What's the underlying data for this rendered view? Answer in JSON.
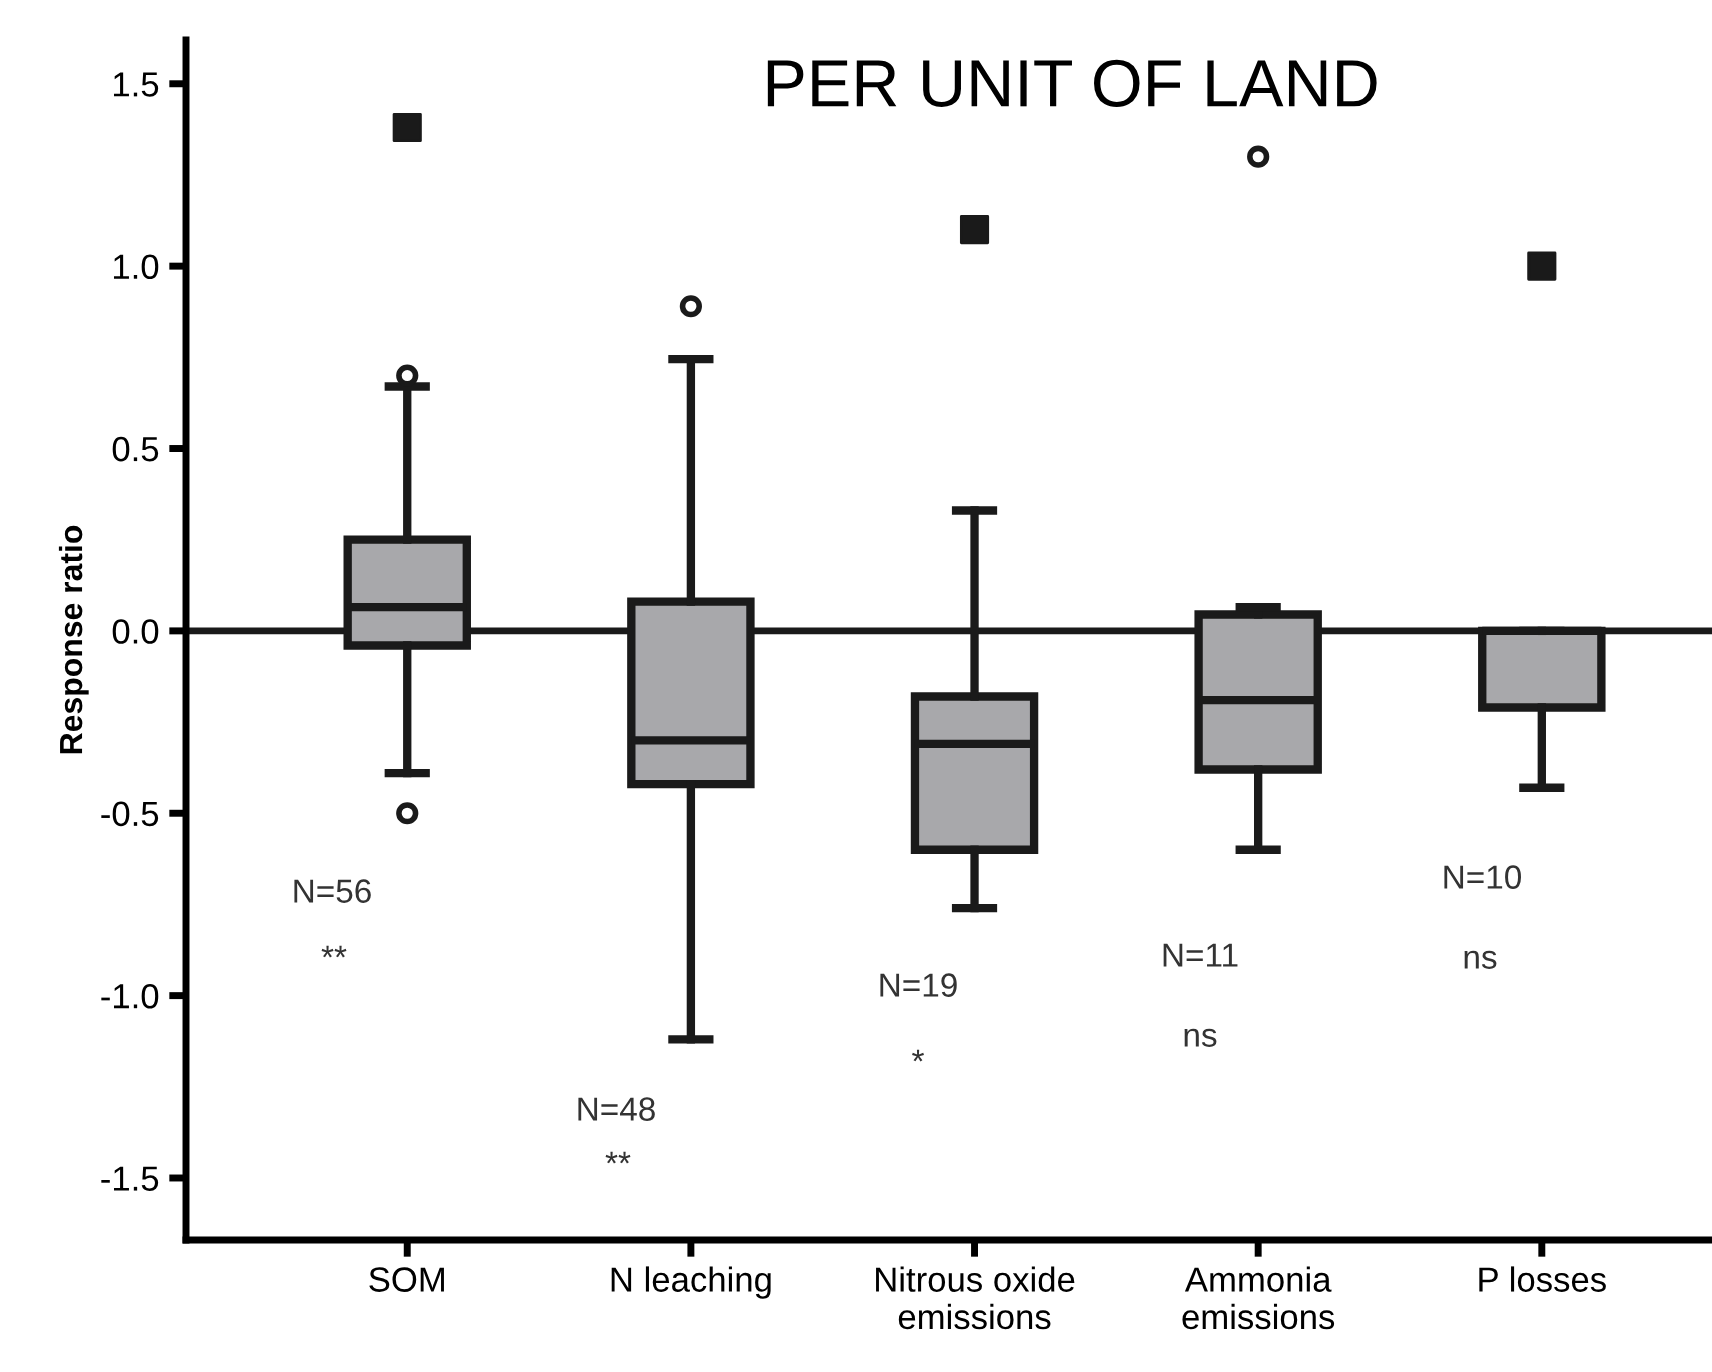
{
  "chart_data": {
    "type": "box",
    "title": "PER UNIT OF LAND",
    "ylabel": "Response ratio",
    "categories": [
      "SOM",
      "N leaching",
      "Nitrous oxide\nemissions",
      "Ammonia\nemissions",
      "P losses"
    ],
    "series": [
      {
        "color": "#a8a8ab",
        "boxes": [
          {
            "low": -0.39,
            "q1": -0.04,
            "median": 0.065,
            "q3": 0.25,
            "high": 0.67,
            "outliers": [
              0.7,
              -0.5
            ]
          },
          {
            "low": -1.12,
            "q1": -0.42,
            "median": -0.3,
            "q3": 0.08,
            "high": 0.745,
            "outliers": [
              0.89
            ]
          },
          {
            "low": -0.76,
            "q1": -0.6,
            "median": -0.31,
            "q3": -0.18,
            "high": 0.33
          },
          {
            "low": -0.6,
            "q1": -0.38,
            "median": -0.19,
            "q3": 0.045,
            "high": 0.065,
            "outliers": [
              1.3
            ]
          },
          {
            "low": -0.43,
            "q1": -0.21,
            "median": 0.0,
            "q3": 0.0,
            "high": 0.0
          }
        ]
      },
      {
        "type": "scatter",
        "color": "#1a1a1a",
        "marker": "square",
        "x": [
          "SOM",
          "Nitrous oxide\nemissions",
          "P losses"
        ],
        "values": [
          1.38,
          1.1,
          1.0
        ]
      }
    ],
    "ylim": [
      -1.67,
      1.62
    ],
    "yticks": [
      {
        "value": 1.5,
        "label": "1.5"
      },
      {
        "value": 1.0,
        "label": "1.0"
      },
      {
        "value": 0.5,
        "label": "0.5"
      },
      {
        "value": 0.0,
        "label": "0.0"
      },
      {
        "value": -0.5,
        "label": "-0.5"
      },
      {
        "value": -1.0,
        "label": "-1.0"
      },
      {
        "value": -1.5,
        "label": "-1.5"
      }
    ],
    "ref_lines": [
      {
        "axis": "y",
        "value": 0,
        "color": "#1a1a1a"
      }
    ],
    "grid": false,
    "legend": false,
    "annotations": [
      "N=56",
      "**",
      "N=48",
      "**",
      "N=19",
      "*",
      "N=11",
      "ns",
      "N=10",
      "ns"
    ]
  }
}
